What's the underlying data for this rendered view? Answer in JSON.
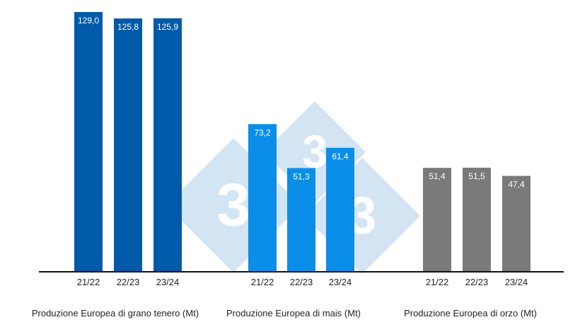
{
  "watermark": {
    "text": "3",
    "color": "#d3e4f2"
  },
  "chart_data": {
    "type": "bar",
    "ylim": [
      0,
      130
    ],
    "grid": false,
    "value_format": "decimal-comma",
    "groups": [
      {
        "title": "Produzione Europea di grano tenero (Mt)",
        "color": "#005aa9",
        "label_color": "#ffffff",
        "categories": [
          "21/22",
          "22/23",
          "23/24"
        ],
        "values": [
          129.0,
          125.8,
          125.9
        ],
        "labels": [
          "129,0",
          "125,8",
          "125,9"
        ]
      },
      {
        "title": "Produzione Europea di mais (Mt)",
        "color": "#0a8ee8",
        "label_color": "#ffffff",
        "categories": [
          "21/22",
          "22/23",
          "23/24"
        ],
        "values": [
          73.2,
          51.3,
          61.4
        ],
        "labels": [
          "73,2",
          "51,3",
          "61,4"
        ]
      },
      {
        "title": "Produzione Europea di orzo (Mt)",
        "color": "#7a7a7a",
        "label_color": "#ffffff",
        "categories": [
          "21/22",
          "22/23",
          "23/24"
        ],
        "values": [
          51.4,
          51.5,
          47.4
        ],
        "labels": [
          "51,4",
          "51,5",
          "47,4"
        ]
      }
    ]
  }
}
